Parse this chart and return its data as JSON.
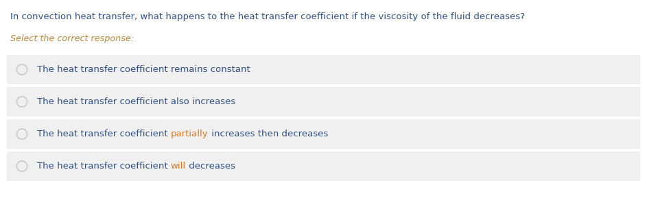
{
  "question_text": "In convection heat transfer, what happens to the heat transfer coefficient if the viscosity of the fluid decreases?",
  "question_color": "#2e4e8b",
  "subtitle": "Select the correct response:",
  "subtitle_color": "#c0873a",
  "background_color": "#ffffff",
  "option_bg_color": "#f0f0f0",
  "option_border_color": "#e0e0e0",
  "radio_color": "#cccccc",
  "blue": "#2e4e8b",
  "orange": "#e07820",
  "options": [
    {
      "segments": [
        {
          "text": "The heat transfer coefficient remains constant",
          "color": "#2e4e8b"
        }
      ]
    },
    {
      "segments": [
        {
          "text": "The heat transfer coefficient also increases",
          "color": "#2e4e8b"
        }
      ]
    },
    {
      "segments": [
        {
          "text": "The heat transfer coefficient ",
          "color": "#2e4e8b"
        },
        {
          "text": "partially",
          "color": "#e07820"
        },
        {
          "text": " increases then decreases",
          "color": "#2e4e8b"
        }
      ]
    },
    {
      "segments": [
        {
          "text": "The heat transfer coefficient ",
          "color": "#2e4e8b"
        },
        {
          "text": "will",
          "color": "#e07820"
        },
        {
          "text": " decreases",
          "color": "#2e4e8b"
        }
      ]
    }
  ]
}
